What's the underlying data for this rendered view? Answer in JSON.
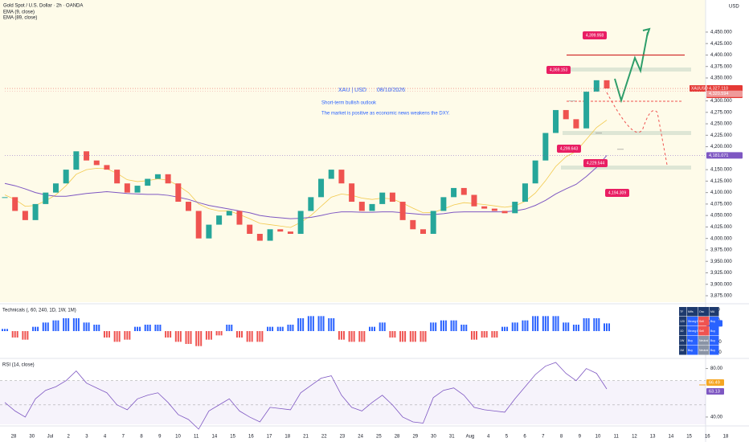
{
  "header": {
    "symbol": "Gold Spot / U.S. Dollar · 2h · OANDA",
    "indicators": [
      "EMA (9, close)",
      "EMA (89, close)"
    ],
    "currency": "USD"
  },
  "chart_data": [
    {
      "type": "candlestick",
      "closes": [
        4090,
        4060,
        4040,
        4075,
        4100,
        4120,
        4150,
        4190,
        4170,
        4160,
        4150,
        4120,
        4100,
        4115,
        4130,
        4140,
        4120,
        4080,
        4060,
        4000,
        4030,
        4050,
        4060,
        4030,
        4010,
        3995,
        4020,
        4015,
        4010,
        4060,
        4090,
        4130,
        4150,
        4120,
        4080,
        4060,
        4075,
        4100,
        4080,
        4040,
        4020,
        4010,
        4060,
        4090,
        4110,
        4095,
        4070,
        4065,
        4060,
        4055,
        4080,
        4120,
        4170,
        4230,
        4280,
        4260,
        4240,
        4320,
        4345,
        4327
      ],
      "up_color": "#26a69a",
      "down_color": "#ef5350",
      "series": [
        {
          "name": "EMA (9, close)",
          "color": "#f2c94c",
          "values": [
            4095,
            4085,
            4070,
            4072,
            4082,
            4095,
            4115,
            4140,
            4150,
            4153,
            4152,
            4142,
            4128,
            4124,
            4126,
            4130,
            4127,
            4115,
            4100,
            4075,
            4065,
            4060,
            4060,
            4052,
            4043,
            4033,
            4030,
            4027,
            4024,
            4035,
            4050,
            4070,
            4090,
            4097,
            4094,
            4088,
            4085,
            4088,
            4086,
            4077,
            4066,
            4056,
            4057,
            4064,
            4073,
            4078,
            4076,
            4074,
            4071,
            4068,
            4071,
            4081,
            4099,
            4126,
            4157,
            4178,
            4190,
            4216,
            4242,
            4258
          ]
        },
        {
          "name": "EMA (89, close)",
          "color": "#7e57c2",
          "values": [
            4120,
            4115,
            4108,
            4100,
            4095,
            4092,
            4092,
            4095,
            4098,
            4100,
            4102,
            4100,
            4098,
            4097,
            4096,
            4096,
            4094,
            4090,
            4085,
            4078,
            4072,
            4068,
            4064,
            4060,
            4056,
            4050,
            4047,
            4045,
            4043,
            4044,
            4046,
            4050,
            4055,
            4058,
            4058,
            4057,
            4057,
            4058,
            4058,
            4056,
            4054,
            4052,
            4052,
            4054,
            4057,
            4058,
            4058,
            4058,
            4058,
            4058,
            4060,
            4064,
            4072,
            4083,
            4097,
            4108,
            4118,
            4135,
            4155,
            4181
          ]
        }
      ],
      "ylim": [
        3861,
        4520
      ],
      "yticks": [
        {
          "value": 4450,
          "label": "4,450.000"
        },
        {
          "value": 4425,
          "label": "4,425.000"
        },
        {
          "value": 4400,
          "label": "4,400.000"
        },
        {
          "value": 4375,
          "label": "4,375.000"
        },
        {
          "value": 4350,
          "label": "4,350.000"
        },
        {
          "value": 4300,
          "label": "4,300.000"
        },
        {
          "value": 4275,
          "label": "4,275.000"
        },
        {
          "value": 4250,
          "label": "4,250.000"
        },
        {
          "value": 4225,
          "label": "4,225.000"
        },
        {
          "value": 4200,
          "label": "4,200.000"
        },
        {
          "value": 4150,
          "label": "4,150.000"
        },
        {
          "value": 4125,
          "label": "4,125.000"
        },
        {
          "value": 4100,
          "label": "4,100.000"
        },
        {
          "value": 4075,
          "label": "4,075.000"
        },
        {
          "value": 4050,
          "label": "4,050.000"
        },
        {
          "value": 4025,
          "label": "4,025.000"
        },
        {
          "value": 4000,
          "label": "4,000.000"
        },
        {
          "value": 3975,
          "label": "3,975.000"
        },
        {
          "value": 3950,
          "label": "3,950.000"
        },
        {
          "value": 3925,
          "label": "3,925.000"
        },
        {
          "value": 3900,
          "label": "3,900.000"
        },
        {
          "value": 3875,
          "label": "3,875.000"
        }
      ],
      "levels": [
        {
          "value": 4399.958,
          "label": "4,399.958"
        },
        {
          "value": 4369.153,
          "label": "4,369.153"
        },
        {
          "value": 4299.643,
          "label": "4,299.643"
        },
        {
          "value": 4229.544,
          "label": "4,229.544"
        },
        {
          "value": 4194.309,
          "label": "4,194.309"
        }
      ],
      "price_tags": [
        {
          "name": "XAUUSD",
          "value": 4327.11,
          "label": "4,327.110",
          "countdown": "17:27"
        },
        {
          "value": 4320.594,
          "label": "4,320.594"
        },
        {
          "value": 4181.071,
          "label": "4,181.071"
        }
      ],
      "title": "XAU | USD",
      "date": "08/10/2026",
      "annotations": [
        "Short-term bullish outlook",
        "The market is positive as economic news weakens the DXY."
      ]
    },
    {
      "type": "bar",
      "title": "Technicals (, 60, 240, 1D, 1W, 1M)",
      "values": [
        0.1,
        -0.3,
        -0.4,
        0.2,
        0.4,
        0.5,
        0.6,
        0.6,
        0.4,
        0.3,
        -0.3,
        -0.5,
        -0.4,
        0.2,
        0.3,
        0.3,
        -0.3,
        -0.5,
        -0.6,
        -0.7,
        -0.4,
        -0.2,
        0.3,
        -0.3,
        -0.5,
        -0.5,
        0.2,
        0.2,
        0.3,
        0.6,
        0.7,
        0.7,
        0.6,
        -0.4,
        -0.5,
        -0.5,
        0.2,
        0.4,
        -0.3,
        -0.5,
        -0.5,
        -0.5,
        0.4,
        0.5,
        0.5,
        0.3,
        -0.4,
        -0.3,
        -0.3,
        0.2,
        0.4,
        0.5,
        0.7,
        0.7,
        0.7,
        0.4,
        0.3,
        0.6,
        0.6,
        0.36
      ],
      "pos_color": "#2962ff",
      "neg_color": "#ef5350",
      "ylim": [
        -1.2,
        1.2
      ],
      "yticks": [
        {
          "value": 1,
          "label": "1.00"
        },
        {
          "value": 0.5,
          "label": "0.50"
        },
        {
          "value": -0.5,
          "label": "-0.50"
        },
        {
          "value": -1,
          "label": "-1.00"
        }
      ],
      "table": {
        "header": [
          "TF",
          "Mtfs",
          "Osc",
          "MA"
        ],
        "rows": [
          [
            "120",
            "Strong Buy",
            "Sell",
            "Buy"
          ],
          [
            "1D",
            "Strong Buy",
            "Sell",
            "Buy"
          ],
          [
            "1W",
            "Buy",
            "Neutral",
            "Buy"
          ],
          [
            "1M",
            "Buy",
            "Neutral",
            "Buy"
          ]
        ]
      }
    },
    {
      "type": "line",
      "title": "RSI (14, close)",
      "series": [
        {
          "name": "RSI",
          "color": "#7e57c2",
          "values": [
            52,
            45,
            40,
            55,
            62,
            65,
            70,
            78,
            68,
            64,
            60,
            50,
            46,
            55,
            58,
            60,
            52,
            42,
            38,
            30,
            45,
            50,
            55,
            45,
            40,
            36,
            48,
            47,
            46,
            60,
            66,
            72,
            74,
            58,
            48,
            45,
            52,
            58,
            50,
            40,
            36,
            35,
            56,
            62,
            64,
            58,
            48,
            46,
            45,
            44,
            55,
            65,
            75,
            82,
            85,
            76,
            70,
            80,
            76,
            63.13
          ]
        }
      ],
      "ylim": [
        34,
        87
      ],
      "yticks": [
        {
          "value": 80,
          "label": "80.00"
        },
        {
          "value": 40,
          "label": "40.00"
        }
      ],
      "bands": [
        70,
        50
      ],
      "ma_tag": {
        "value": 66.49,
        "label": "66.49"
      }
    }
  ],
  "time_axis": {
    "labels": [
      "28",
      "30",
      "Jul",
      "2",
      "3",
      "4",
      "7",
      "8",
      "9",
      "10",
      "11",
      "14",
      "15",
      "16",
      "17",
      "18",
      "21",
      "22",
      "23",
      "24",
      "25",
      "28",
      "29",
      "30",
      "31",
      "Aug",
      "4",
      "5",
      "6",
      "7",
      "8",
      "9",
      "10",
      "11",
      "12",
      "13",
      "14",
      "15",
      "16",
      "18"
    ]
  }
}
